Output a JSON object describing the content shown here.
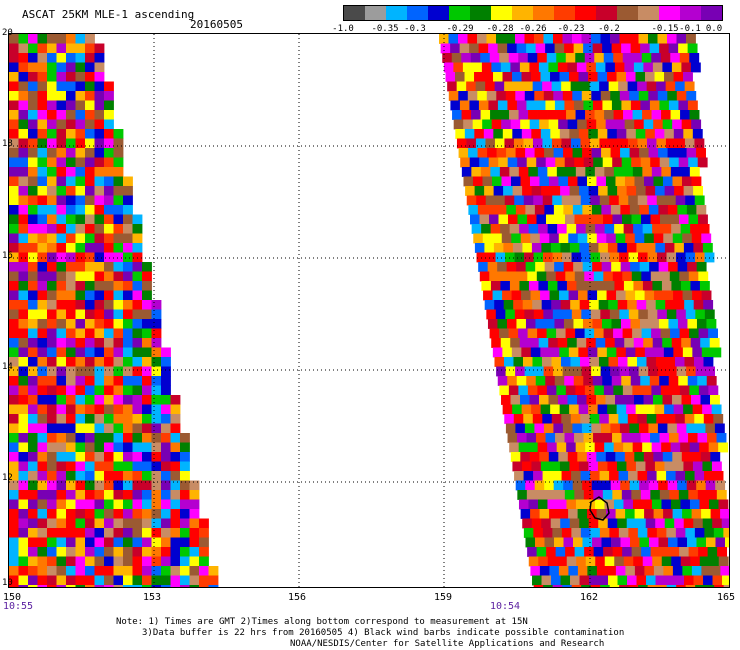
{
  "header": {
    "title": "ASCAT 25KM MLE-1 ascending",
    "date": "20160505"
  },
  "colorbar": {
    "colors": [
      "#4a4a4a",
      "#9c9c9c",
      "#00b4ff",
      "#0064ff",
      "#0000d0",
      "#00c800",
      "#008000",
      "#ffff00",
      "#ffb400",
      "#ff7800",
      "#ff3c00",
      "#ff0000",
      "#c8002a",
      "#9b5a32",
      "#c88c64",
      "#ff00ff",
      "#b400d0",
      "#7800b4"
    ],
    "labels": [
      "-1.0",
      "-0.35",
      "-0.3",
      "-0.29",
      "-0.28",
      "-0.26",
      "-0.23",
      "-0.2",
      "-0.15",
      "-0.1",
      "0.0"
    ]
  },
  "map": {
    "lat_labels": [
      "20",
      "18",
      "16",
      "14",
      "12",
      "10"
    ],
    "lon_labels": [
      "150",
      "153",
      "156",
      "159",
      "162",
      "165"
    ],
    "times": [
      "10:55",
      "10:54"
    ]
  },
  "note": {
    "line1": "Note: 1) Times are GMT 2)Times along bottom correspond to measurement at 15N",
    "line2": "3)Data buffer is 22 hrs from 20160505 4) Black wind barbs indicate possible contamination",
    "line3": "NOAA/NESDIS/Center for Satellite Applications and Research"
  }
}
